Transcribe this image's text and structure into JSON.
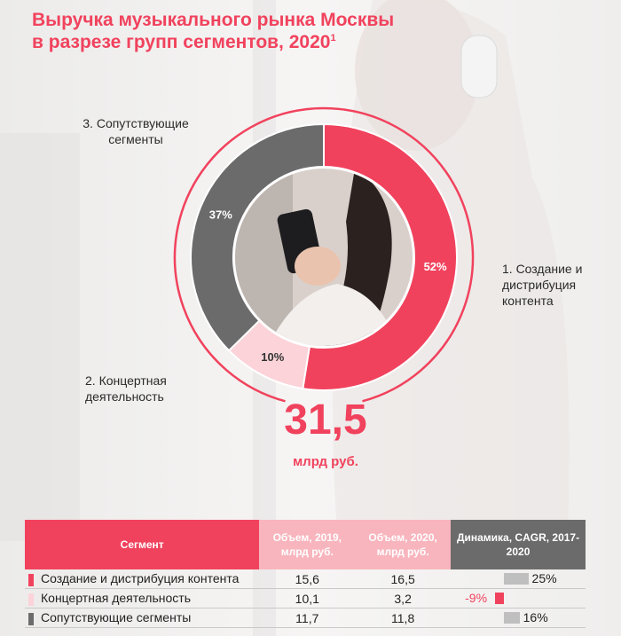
{
  "title_line1": "Выручка музыкального рынка Москвы",
  "title_line2": "в разрезе групп сегментов, 2020",
  "title_footnote": "1",
  "total_value": "31,5",
  "total_unit": "млрд руб.",
  "colors": {
    "accent": "#f1425d",
    "concert": "#fbd3d9",
    "related": "#6b6b6b"
  },
  "chart_data": {
    "type": "pie",
    "title": "Выручка музыкального рынка Москвы в разрезе групп сегментов, 2020",
    "labels": [
      "1. Создание и дистрибуция контента",
      "2. Концертная деятельность",
      "3. Сопутствующие сегменты"
    ],
    "values": [
      52,
      10,
      37
    ],
    "value_labels": [
      "52%",
      "10%",
      "37%"
    ],
    "colors": [
      "#f1425d",
      "#fbd3d9",
      "#6b6b6b"
    ],
    "center_total": "31,5 млрд руб."
  },
  "labels": {
    "seg1": [
      "1. Создание и",
      "дистрибуция",
      "контента"
    ],
    "seg2": [
      "2. Концертная",
      "деятельность"
    ],
    "seg3": [
      "3. Сопутствующие",
      "сегменты"
    ]
  },
  "table": {
    "headers": {
      "segment": "Сегмент",
      "vol2019": "Объем, 2019, млрд руб.",
      "vol2020": "Объем, 2020, млрд руб.",
      "cagr": "Динамика, CAGR, 2017-2020"
    },
    "rows": [
      {
        "name": "Создание и дистрибуция контента",
        "v2019": "15,6",
        "v2020": "16,5",
        "cagr_label": "25%",
        "cagr": 25,
        "color": "#f1425d"
      },
      {
        "name": "Концертная деятельность",
        "v2019": "10,1",
        "v2020": "3,2",
        "cagr_label": "-9%",
        "cagr": -9,
        "color": "#fbd3d9"
      },
      {
        "name": "Сопутствующие сегменты",
        "v2019": "11,7",
        "v2020": "11,8",
        "cagr_label": "16%",
        "cagr": 16,
        "color": "#6b6b6b"
      }
    ]
  }
}
